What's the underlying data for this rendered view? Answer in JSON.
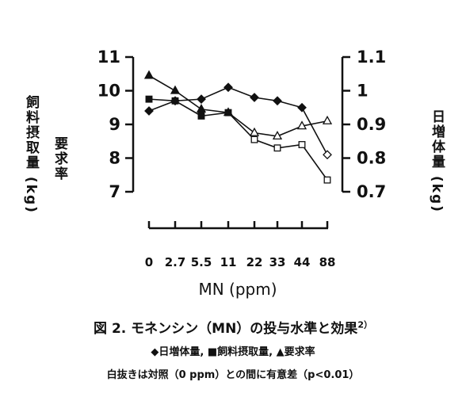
{
  "chart_data": {
    "type": "line",
    "categories": [
      "0",
      "2.7",
      "5.5",
      "11",
      "22",
      "33",
      "44",
      "88"
    ],
    "xlabel": "MN (ppm)",
    "y_left": {
      "label_line1": "飼料摂取量 (kg)",
      "label_line2": "要求率",
      "lim": [
        7,
        11
      ],
      "ticks": [
        "7",
        "8",
        "9",
        "10",
        "11"
      ]
    },
    "y_right": {
      "label": "日増体量 (kg)",
      "lim": [
        0.7,
        1.1
      ],
      "ticks": [
        "0.7",
        "0.8",
        "0.9",
        "1",
        "1.1"
      ]
    },
    "series": [
      {
        "name": "日増体量",
        "marker": "diamond",
        "axis": "right",
        "values": [
          0.94,
          0.97,
          0.975,
          1.01,
          0.98,
          0.97,
          0.95,
          0.81
        ],
        "open": [
          false,
          false,
          false,
          false,
          false,
          false,
          false,
          true
        ]
      },
      {
        "name": "飼料摂取量",
        "marker": "square",
        "axis": "left",
        "values": [
          9.75,
          9.7,
          9.25,
          9.35,
          8.55,
          8.3,
          8.4,
          7.35
        ],
        "open": [
          false,
          false,
          false,
          false,
          true,
          true,
          true,
          true
        ]
      },
      {
        "name": "要求率",
        "marker": "triangle",
        "axis": "left",
        "values": [
          10.45,
          10.0,
          9.45,
          9.35,
          8.75,
          8.65,
          8.95,
          9.1
        ],
        "open": [
          false,
          false,
          false,
          false,
          true,
          true,
          true,
          true
        ]
      }
    ]
  },
  "caption": {
    "title": "図 2.  モネンシン（MN）の投与水準と効果",
    "title_sup": "2）",
    "legend": "◆日増体量, ■飼料摂取量, ▲要求率",
    "note": "白抜きは対照（0 ppm）との間に有意差（p<0.01）"
  }
}
